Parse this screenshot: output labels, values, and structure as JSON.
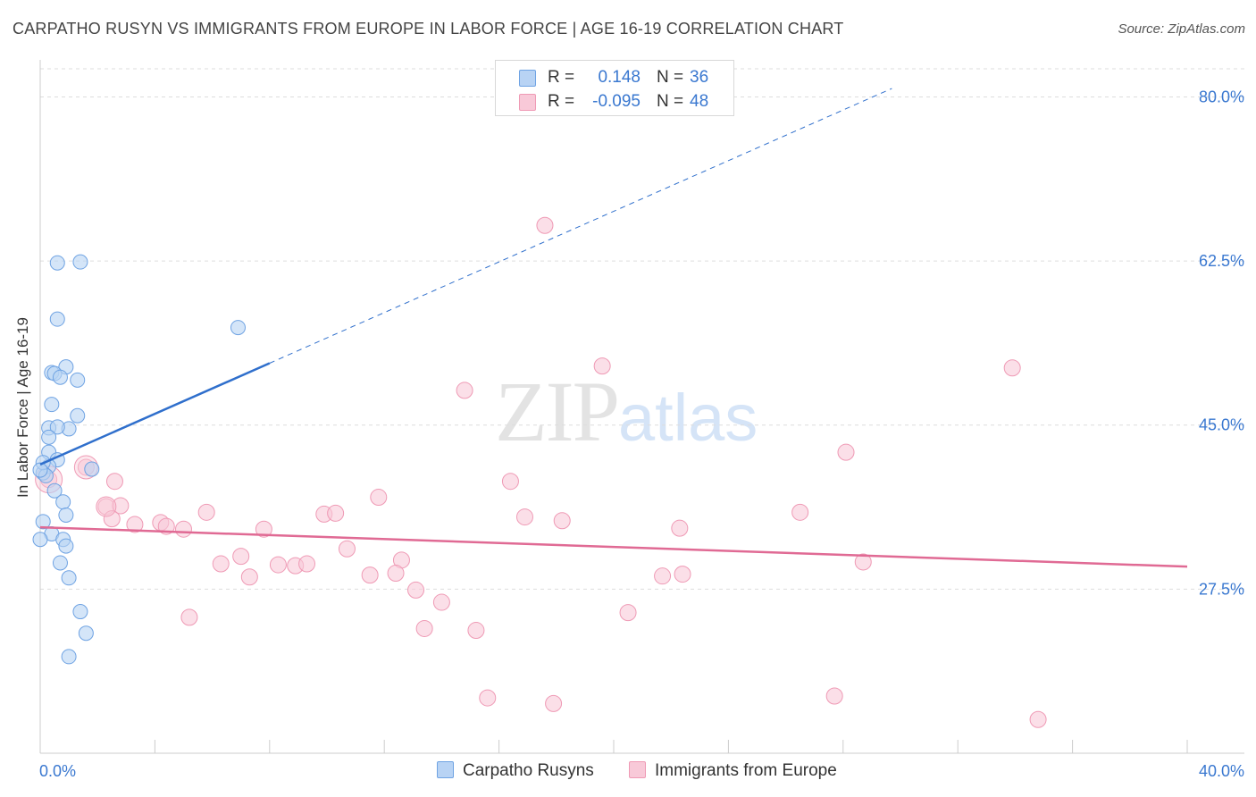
{
  "title": "CARPATHO RUSYN VS IMMIGRANTS FROM EUROPE IN LABOR FORCE | AGE 16-19 CORRELATION CHART",
  "source": "Source: ZipAtlas.com",
  "watermark": {
    "zip": "ZIP",
    "atlas": "atlas"
  },
  "legend": {
    "series1": {
      "r_label": "R =",
      "r_value": "0.148",
      "n_label": "N =",
      "n_value": "36"
    },
    "series2": {
      "r_label": "R =",
      "r_value": "-0.095",
      "n_label": "N =",
      "n_value": "48"
    }
  },
  "bottom_legend": {
    "series1": "Carpatho Rusyns",
    "series2": "Immigrants from Europe"
  },
  "chart_data": {
    "type": "scatter",
    "title": "CARPATHO RUSYN VS IMMIGRANTS FROM EUROPE IN LABOR FORCE | AGE 16-19 CORRELATION CHART",
    "xlabel": "",
    "ylabel": "In Labor Force | Age 16-19",
    "xlim": [
      0,
      40
    ],
    "ylim": [
      10,
      83
    ],
    "x_tick_labels": [
      "0.0%",
      "40.0%"
    ],
    "y_ticks": [
      27.5,
      45.0,
      62.5,
      80.0
    ],
    "y_tick_labels": [
      "27.5%",
      "45.0%",
      "62.5%",
      "80.0%"
    ],
    "colors": {
      "series1": "#6fa3e3",
      "series1_fill": "#b8d3f4",
      "series1_line": "#2f6fcc",
      "series2": "#ef9ab5",
      "series2_fill": "#f8c9d8",
      "series2_line": "#e06a94",
      "tick": "#3a78d0",
      "grid": "#dddddd"
    },
    "series": [
      {
        "name": "Carpatho Rusyns",
        "points": [
          [
            0.6,
            62.3
          ],
          [
            1.4,
            62.4
          ],
          [
            0.6,
            56.3
          ],
          [
            6.9,
            55.4
          ],
          [
            0.9,
            51.2
          ],
          [
            0.4,
            50.6
          ],
          [
            0.5,
            50.5
          ],
          [
            0.7,
            50.1
          ],
          [
            1.3,
            49.8
          ],
          [
            0.4,
            47.2
          ],
          [
            1.3,
            46.0
          ],
          [
            0.3,
            44.7
          ],
          [
            1.0,
            44.6
          ],
          [
            0.6,
            44.8
          ],
          [
            0.3,
            43.7
          ],
          [
            0.3,
            42.1
          ],
          [
            0.6,
            41.3
          ],
          [
            0.3,
            40.6
          ],
          [
            1.8,
            40.3
          ],
          [
            0.1,
            39.9
          ],
          [
            0.2,
            39.6
          ],
          [
            0.5,
            38.0
          ],
          [
            0.8,
            36.8
          ],
          [
            0.9,
            35.4
          ],
          [
            0.1,
            34.7
          ],
          [
            0.4,
            33.4
          ],
          [
            0.8,
            32.8
          ],
          [
            0.9,
            32.1
          ],
          [
            0.7,
            30.3
          ],
          [
            1.0,
            28.7
          ],
          [
            1.4,
            25.1
          ],
          [
            1.6,
            22.8
          ],
          [
            1.0,
            20.3
          ],
          [
            0.0,
            32.8
          ],
          [
            0.1,
            41.0
          ],
          [
            0.0,
            40.2
          ]
        ],
        "trend": {
          "x0": 0.0,
          "y0": 40.8,
          "x1": 8.0,
          "y1": 51.6,
          "dashed_to_x": 29.7,
          "dashed_to_y": 80.9
        }
      },
      {
        "name": "Immigrants from Europe",
        "points": [
          [
            17.6,
            66.3
          ],
          [
            19.6,
            51.3
          ],
          [
            33.9,
            51.1
          ],
          [
            14.8,
            48.7
          ],
          [
            28.1,
            42.1
          ],
          [
            1.6,
            40.5
          ],
          [
            0.3,
            39.2
          ],
          [
            2.6,
            39.0
          ],
          [
            16.4,
            39.0
          ],
          [
            11.8,
            37.3
          ],
          [
            2.3,
            36.3
          ],
          [
            2.8,
            36.4
          ],
          [
            5.8,
            35.7
          ],
          [
            9.9,
            35.5
          ],
          [
            10.3,
            35.6
          ],
          [
            16.9,
            35.2
          ],
          [
            18.2,
            34.8
          ],
          [
            26.5,
            35.7
          ],
          [
            3.3,
            34.4
          ],
          [
            4.2,
            34.6
          ],
          [
            4.4,
            34.2
          ],
          [
            5.0,
            33.9
          ],
          [
            7.8,
            33.9
          ],
          [
            22.3,
            34.0
          ],
          [
            10.7,
            31.8
          ],
          [
            7.0,
            31.0
          ],
          [
            6.3,
            30.2
          ],
          [
            8.3,
            30.1
          ],
          [
            8.9,
            30.0
          ],
          [
            9.3,
            30.2
          ],
          [
            12.6,
            30.6
          ],
          [
            28.7,
            30.4
          ],
          [
            11.5,
            29.0
          ],
          [
            12.4,
            29.2
          ],
          [
            21.7,
            28.9
          ],
          [
            22.4,
            29.1
          ],
          [
            7.3,
            28.8
          ],
          [
            13.1,
            27.4
          ],
          [
            14.0,
            26.1
          ],
          [
            5.2,
            24.5
          ],
          [
            20.5,
            25.0
          ],
          [
            13.4,
            23.3
          ],
          [
            15.2,
            23.1
          ],
          [
            15.6,
            15.9
          ],
          [
            17.9,
            15.3
          ],
          [
            27.7,
            16.1
          ],
          [
            34.8,
            13.6
          ],
          [
            2.5,
            35.0
          ]
        ],
        "trend": {
          "x0": 0.0,
          "y0": 34.1,
          "x1": 40.0,
          "y1": 29.9
        }
      }
    ]
  }
}
